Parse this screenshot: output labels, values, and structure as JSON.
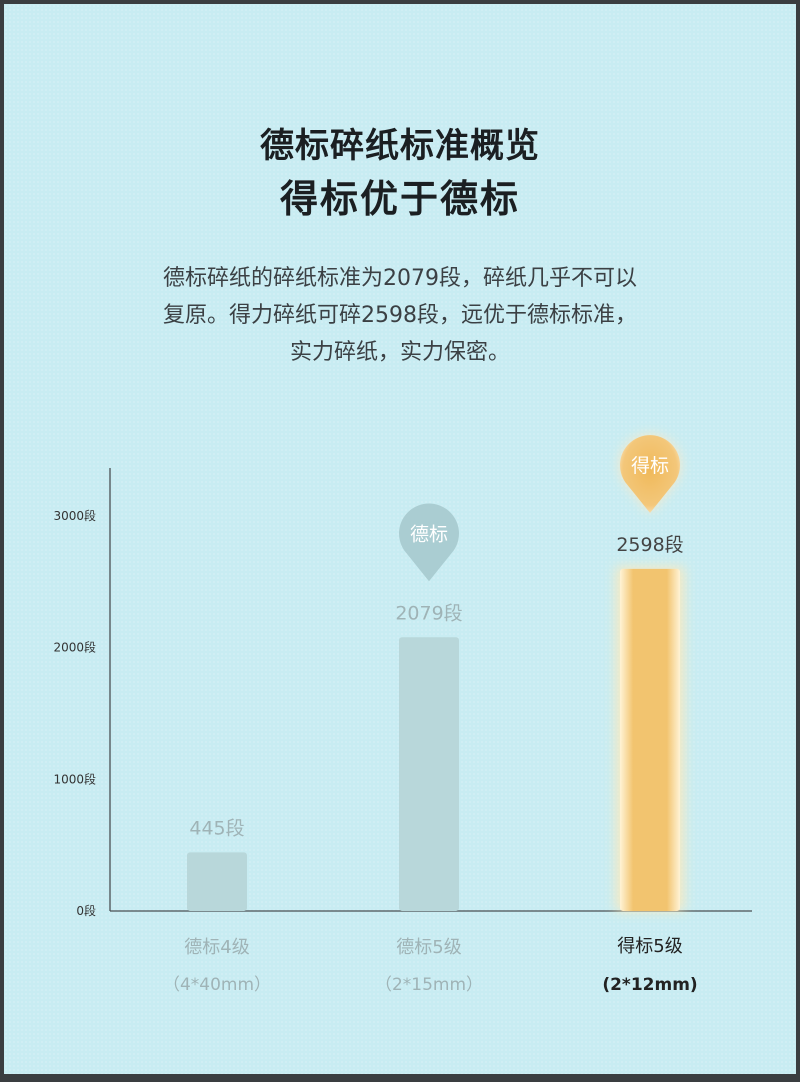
{
  "header": {
    "title_line1": "德标碎纸标准概览",
    "title_line2": "得标优于德标"
  },
  "description": {
    "lines": [
      "德标碎纸的碎纸标准为2079段，碎纸几乎不可以",
      "复原。得力碎纸可碎2598段，远优于德标标准，",
      "实力碎纸，实力保密。"
    ]
  },
  "chart_data": {
    "type": "bar",
    "ylim": [
      0,
      3000
    ],
    "y_ticks": [
      0,
      1000,
      2000,
      3000
    ],
    "y_tick_labels": [
      "0段",
      "1000段",
      "2000段",
      "3000段"
    ],
    "categories": [
      "德标4级",
      "德标5级",
      "得标5级"
    ],
    "subcategories": [
      "（4*40mm）",
      "（2*15mm）",
      "(2*12mm)"
    ],
    "values": [
      445,
      2079,
      2598
    ],
    "value_labels": [
      "445段",
      "2079段",
      "2598段"
    ],
    "highlight_index": 2,
    "markers": [
      {
        "category_index": 1,
        "label": "德标",
        "color": "#aacdd2"
      },
      {
        "category_index": 2,
        "label": "得标",
        "color": "#f0b95a"
      }
    ],
    "colors": {
      "normal_bar": "#b8d7da",
      "highlight_bar": "#f2c46f",
      "axis": "#4a4f53",
      "muted_text": "#9fb3b6",
      "value_text_highlight": "#444444",
      "category_text_highlight": "#222222"
    }
  }
}
